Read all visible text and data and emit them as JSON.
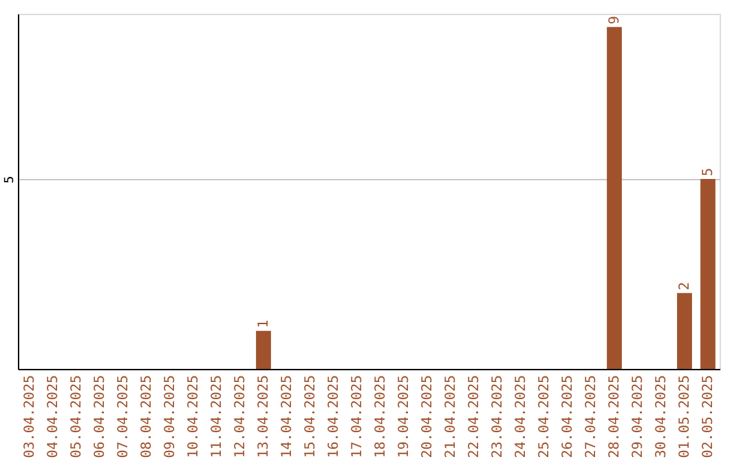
{
  "chart_data": {
    "type": "bar",
    "categories": [
      "03.04.2025",
      "04.04.2025",
      "05.04.2025",
      "06.04.2025",
      "07.04.2025",
      "08.04.2025",
      "09.04.2025",
      "10.04.2025",
      "11.04.2025",
      "12.04.2025",
      "13.04.2025",
      "14.04.2025",
      "15.04.2025",
      "16.04.2025",
      "17.04.2025",
      "18.04.2025",
      "19.04.2025",
      "20.04.2025",
      "21.04.2025",
      "22.04.2025",
      "23.04.2025",
      "24.04.2025",
      "25.04.2025",
      "26.04.2025",
      "27.04.2025",
      "28.04.2025",
      "29.04.2025",
      "30.04.2025",
      "01.05.2025",
      "02.05.2025"
    ],
    "values": [
      0,
      0,
      0,
      0,
      0,
      0,
      0,
      0,
      0,
      0,
      1,
      0,
      0,
      0,
      0,
      0,
      0,
      0,
      0,
      0,
      0,
      0,
      0,
      0,
      0,
      9,
      0,
      0,
      2,
      5
    ],
    "value_labels": [
      null,
      null,
      null,
      null,
      null,
      null,
      null,
      null,
      null,
      null,
      "1",
      null,
      null,
      null,
      null,
      null,
      null,
      null,
      null,
      null,
      null,
      null,
      null,
      null,
      null,
      "9",
      null,
      null,
      "2",
      "5"
    ],
    "color": "#a0522d",
    "ylim": [
      0,
      9.35
    ],
    "yticks": [
      5
    ],
    "grid": "y"
  }
}
